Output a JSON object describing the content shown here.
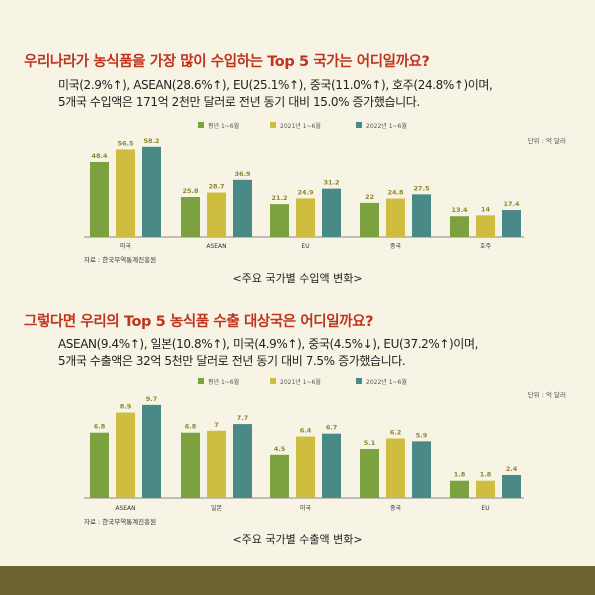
{
  "import_section": {
    "title": "우리나라가 농식품을 가장 많이 수입하는 Top 5 국가는 어디일까요?",
    "desc_line1": "미국(2.9%↑), ASEAN(28.6%↑), EU(25.1%↑), 중국(11.0%↑), 호주(24.8%↑)이며,",
    "desc_line2": "5개국 수입액은 171억 2천만 달러로 전년 동기 대비 15.0% 증가했습니다.",
    "caption": "<주요 국가별 수입액 변화>"
  },
  "export_section": {
    "title": "그렇다면 우리의 Top 5 농식품 수출 대상국은 어디일까요?",
    "desc_line1": "ASEAN(9.4%↑), 일본(10.8%↑), 미국(4.9%↑), 중국(4.5%↓), EU(37.2%↑)이며,",
    "desc_line2": "5개국 수출액은 32억 5천만 달러로 전년 동기 대비 7.5% 증가했습니다.",
    "caption": "<주요 국가별 수출액 변화>"
  },
  "colors": {
    "s1": "#7ba23f",
    "s2": "#cfbd3f",
    "s3": "#4a8a86",
    "label": "#8a8a2e",
    "axis": "#888888"
  },
  "chart_data": [
    {
      "type": "bar",
      "unit_note": "단위 : 억 달러",
      "source": "자료 : 한국무역통계진흥원",
      "categories": [
        "미국",
        "ASEAN",
        "EU",
        "중국",
        "호주"
      ],
      "series": [
        {
          "name": "평년 1~6월",
          "values": [
            48.4,
            25.8,
            21.2,
            22.0,
            13.4
          ]
        },
        {
          "name": "2021년 1~6월",
          "values": [
            56.5,
            28.7,
            24.9,
            24.8,
            14.0
          ]
        },
        {
          "name": "2022년 1~6월",
          "values": [
            58.2,
            36.9,
            31.2,
            27.5,
            17.4
          ]
        }
      ],
      "ylim": [
        0,
        60
      ],
      "legend": "top-center"
    },
    {
      "type": "bar",
      "unit_note": "단위 : 억 달러",
      "source": "자료 : 한국무역통계진흥원",
      "categories": [
        "ASEAN",
        "일본",
        "미국",
        "중국",
        "EU"
      ],
      "series": [
        {
          "name": "평년 1~6월",
          "values": [
            6.8,
            6.8,
            4.5,
            5.1,
            1.8
          ]
        },
        {
          "name": "2021년 1~6월",
          "values": [
            8.9,
            7.0,
            6.4,
            6.2,
            1.8
          ]
        },
        {
          "name": "2022년 1~6월",
          "values": [
            9.7,
            7.7,
            6.7,
            5.9,
            2.4
          ]
        }
      ],
      "ylim": [
        0,
        10
      ],
      "legend": "top-center"
    }
  ]
}
